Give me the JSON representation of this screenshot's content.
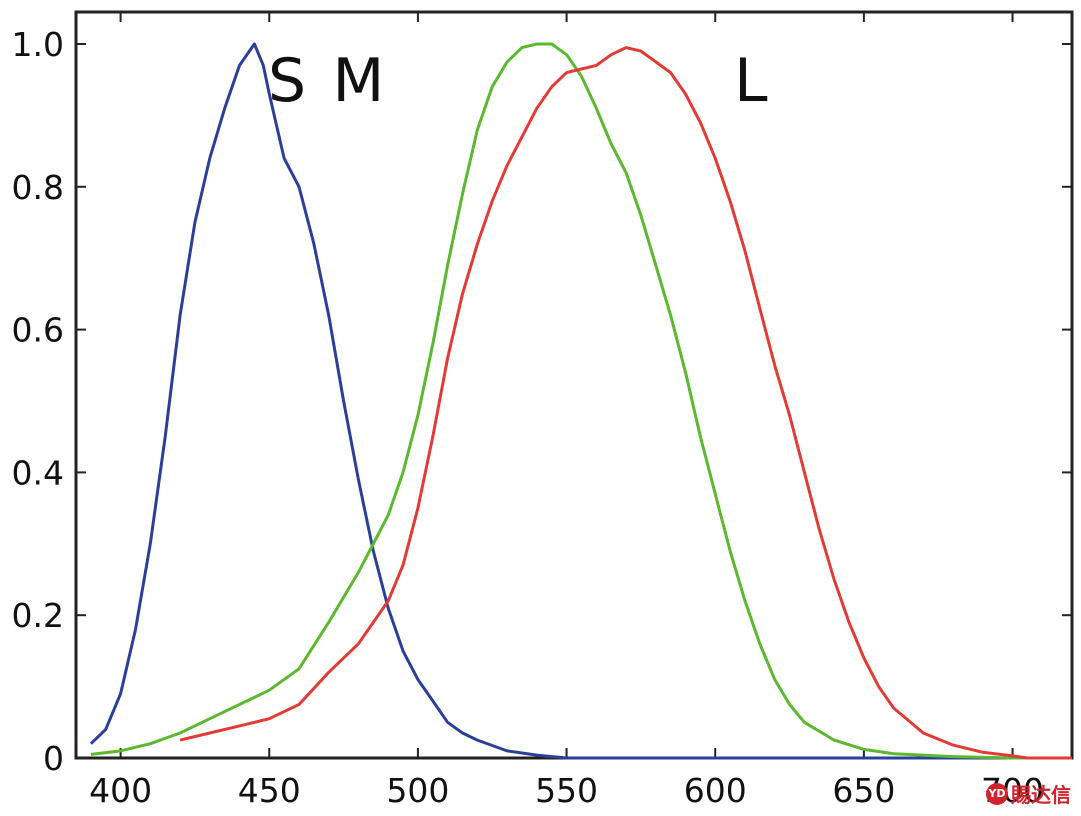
{
  "chart_data": {
    "type": "line",
    "xlim": [
      385,
      720
    ],
    "ylim": [
      0,
      1.0
    ],
    "x_ticks": [
      400,
      450,
      500,
      550,
      600,
      650,
      700
    ],
    "x_tick_labels": [
      "400",
      "450",
      "500",
      "550",
      "600",
      "650",
      "700"
    ],
    "y_ticks": [
      0,
      0.2,
      0.4,
      0.6,
      0.8,
      1.0
    ],
    "y_tick_labels": [
      "0",
      "0.2",
      "0.4",
      "0.6",
      "0.8",
      "1.0"
    ],
    "grid": false,
    "series": [
      {
        "name": "S",
        "color": "#2b3f99",
        "points": [
          [
            390,
            0.02
          ],
          [
            395,
            0.04
          ],
          [
            400,
            0.09
          ],
          [
            405,
            0.18
          ],
          [
            410,
            0.3
          ],
          [
            415,
            0.45
          ],
          [
            420,
            0.62
          ],
          [
            425,
            0.75
          ],
          [
            430,
            0.84
          ],
          [
            435,
            0.91
          ],
          [
            440,
            0.97
          ],
          [
            445,
            1.0
          ],
          [
            448,
            0.97
          ],
          [
            450,
            0.93
          ],
          [
            455,
            0.84
          ],
          [
            460,
            0.8
          ],
          [
            465,
            0.72
          ],
          [
            470,
            0.62
          ],
          [
            475,
            0.5
          ],
          [
            480,
            0.39
          ],
          [
            485,
            0.29
          ],
          [
            490,
            0.21
          ],
          [
            495,
            0.15
          ],
          [
            500,
            0.11
          ],
          [
            505,
            0.08
          ],
          [
            510,
            0.05
          ],
          [
            515,
            0.035
          ],
          [
            520,
            0.025
          ],
          [
            530,
            0.01
          ],
          [
            540,
            0.004
          ],
          [
            550,
            0.0
          ],
          [
            700,
            0.0
          ],
          [
            720,
            0.0
          ]
        ]
      },
      {
        "name": "M",
        "color": "#5cb82e",
        "points": [
          [
            390,
            0.005
          ],
          [
            400,
            0.01
          ],
          [
            410,
            0.02
          ],
          [
            420,
            0.035
          ],
          [
            430,
            0.055
          ],
          [
            440,
            0.075
          ],
          [
            450,
            0.095
          ],
          [
            460,
            0.125
          ],
          [
            470,
            0.19
          ],
          [
            480,
            0.26
          ],
          [
            490,
            0.34
          ],
          [
            495,
            0.4
          ],
          [
            500,
            0.48
          ],
          [
            505,
            0.58
          ],
          [
            510,
            0.69
          ],
          [
            515,
            0.79
          ],
          [
            520,
            0.88
          ],
          [
            525,
            0.94
          ],
          [
            530,
            0.975
          ],
          [
            535,
            0.995
          ],
          [
            540,
            1.0
          ],
          [
            545,
            1.0
          ],
          [
            550,
            0.985
          ],
          [
            555,
            0.955
          ],
          [
            560,
            0.91
          ],
          [
            565,
            0.86
          ],
          [
            570,
            0.82
          ],
          [
            575,
            0.76
          ],
          [
            580,
            0.69
          ],
          [
            585,
            0.62
          ],
          [
            590,
            0.54
          ],
          [
            595,
            0.45
          ],
          [
            600,
            0.37
          ],
          [
            605,
            0.29
          ],
          [
            610,
            0.22
          ],
          [
            615,
            0.16
          ],
          [
            620,
            0.11
          ],
          [
            625,
            0.075
          ],
          [
            630,
            0.05
          ],
          [
            640,
            0.025
          ],
          [
            650,
            0.012
          ],
          [
            660,
            0.006
          ],
          [
            680,
            0.002
          ],
          [
            700,
            0.0
          ],
          [
            720,
            0.0
          ]
        ]
      },
      {
        "name": "L",
        "color": "#e23b36",
        "points": [
          [
            420,
            0.025
          ],
          [
            430,
            0.035
          ],
          [
            440,
            0.045
          ],
          [
            450,
            0.055
          ],
          [
            460,
            0.075
          ],
          [
            470,
            0.12
          ],
          [
            480,
            0.16
          ],
          [
            490,
            0.22
          ],
          [
            495,
            0.27
          ],
          [
            500,
            0.35
          ],
          [
            505,
            0.45
          ],
          [
            510,
            0.56
          ],
          [
            515,
            0.65
          ],
          [
            520,
            0.72
          ],
          [
            525,
            0.78
          ],
          [
            530,
            0.83
          ],
          [
            535,
            0.87
          ],
          [
            540,
            0.91
          ],
          [
            545,
            0.94
          ],
          [
            550,
            0.96
          ],
          [
            555,
            0.965
          ],
          [
            560,
            0.97
          ],
          [
            565,
            0.985
          ],
          [
            570,
            0.995
          ],
          [
            575,
            0.99
          ],
          [
            580,
            0.975
          ],
          [
            585,
            0.96
          ],
          [
            590,
            0.93
          ],
          [
            595,
            0.89
          ],
          [
            600,
            0.84
          ],
          [
            605,
            0.78
          ],
          [
            610,
            0.71
          ],
          [
            615,
            0.63
          ],
          [
            620,
            0.55
          ],
          [
            625,
            0.48
          ],
          [
            630,
            0.4
          ],
          [
            635,
            0.32
          ],
          [
            640,
            0.25
          ],
          [
            645,
            0.19
          ],
          [
            650,
            0.14
          ],
          [
            655,
            0.1
          ],
          [
            660,
            0.07
          ],
          [
            670,
            0.035
          ],
          [
            680,
            0.018
          ],
          [
            690,
            0.008
          ],
          [
            700,
            0.003
          ],
          [
            705,
            0.0
          ],
          [
            720,
            0.0
          ]
        ]
      }
    ],
    "series_labels": [
      {
        "text": "S",
        "x": 456,
        "y": 0.92
      },
      {
        "text": "M",
        "x": 480,
        "y": 0.92
      },
      {
        "text": "L",
        "x": 612,
        "y": 0.92
      }
    ]
  },
  "watermark": {
    "icon_text": "YD",
    "text": "賜达信"
  }
}
